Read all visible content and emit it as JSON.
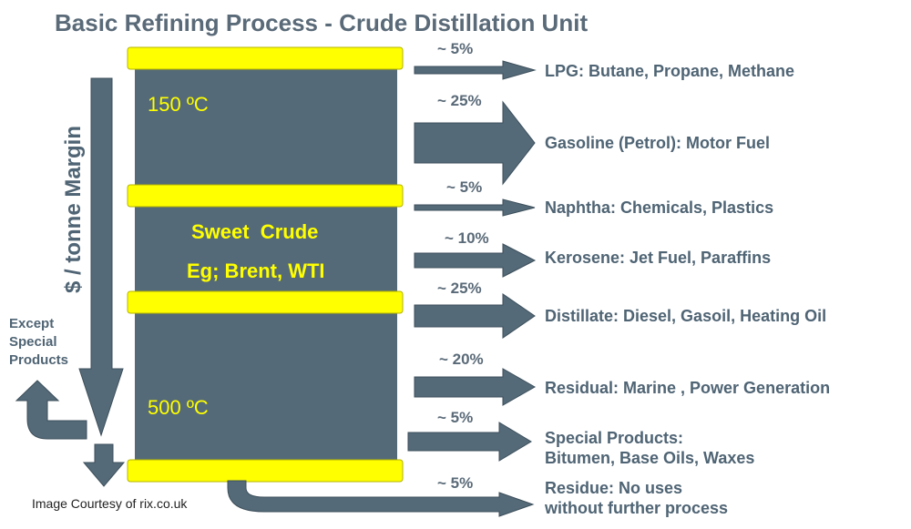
{
  "title": "Basic Refining Process - Crude Distillation Unit",
  "column": {
    "temp_top": "150 ºC",
    "temp_bottom": "500 ºC",
    "crude_line1": "Sweet  Crude",
    "crude_line2": "Eg; Brent, WTI"
  },
  "margin_label": "$ / tonne Margin",
  "except_label": [
    "Except",
    "Special",
    "Products"
  ],
  "credit": "Image Courtesy of rix.co.uk",
  "fractions": [
    {
      "pct": "~ 5%",
      "label": [
        "LPG: Butane, Propane, Methane"
      ]
    },
    {
      "pct": "~ 25%",
      "label": [
        "Gasoline (Petrol): Motor Fuel"
      ]
    },
    {
      "pct": "~ 5%",
      "label": [
        "Naphtha: Chemicals, Plastics"
      ]
    },
    {
      "pct": "~ 10%",
      "label": [
        "Kerosene: Jet Fuel, Paraffins"
      ]
    },
    {
      "pct": "~ 25%",
      "label": [
        "Distillate: Diesel, Gasoil, Heating Oil"
      ]
    },
    {
      "pct": "~ 20%",
      "label": [
        "Residual: Marine , Power Generation"
      ]
    },
    {
      "pct": "~ 5%",
      "label": [
        "Special Products:",
        "Bitumen, Base Oils, Waxes"
      ]
    },
    {
      "pct": "~ 5%",
      "label": [
        "Residue: No uses",
        "without further process"
      ]
    }
  ]
}
